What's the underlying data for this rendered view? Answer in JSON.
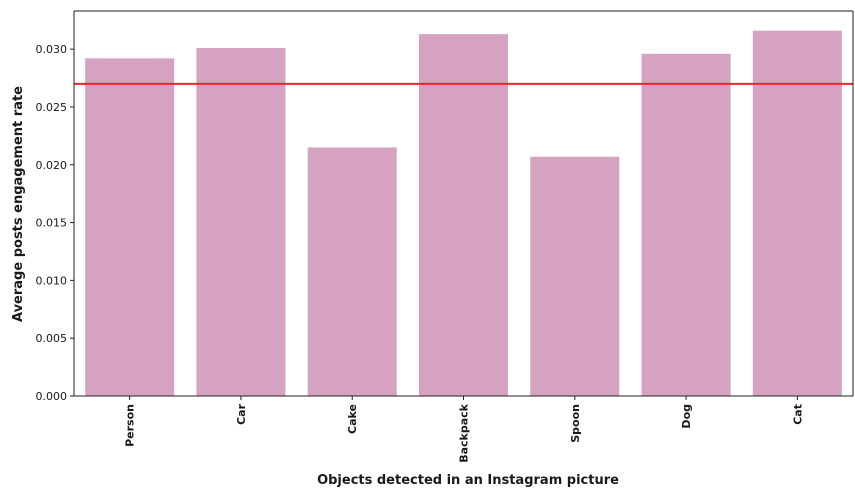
{
  "chart_data": {
    "type": "bar",
    "categories": [
      "Person",
      "Car",
      "Cake",
      "Backpack",
      "Spoon",
      "Dog",
      "Cat"
    ],
    "values": [
      0.0292,
      0.0301,
      0.0215,
      0.0313,
      0.0207,
      0.0296,
      0.0316
    ],
    "reference_line": {
      "value": 0.027,
      "color": "#e8262b"
    },
    "bar_color": "#d6a2c2",
    "xlabel": "Objects detected in an Instagram picture",
    "ylabel": "Average posts engagement rate",
    "ylim": [
      0,
      0.0333
    ],
    "yticks": [
      0.0,
      0.005,
      0.01,
      0.015,
      0.02,
      0.025,
      0.03
    ],
    "ytick_labels": [
      "0.000",
      "0.005",
      "0.010",
      "0.015",
      "0.020",
      "0.025",
      "0.030"
    ],
    "grid": false,
    "legend": "none"
  }
}
